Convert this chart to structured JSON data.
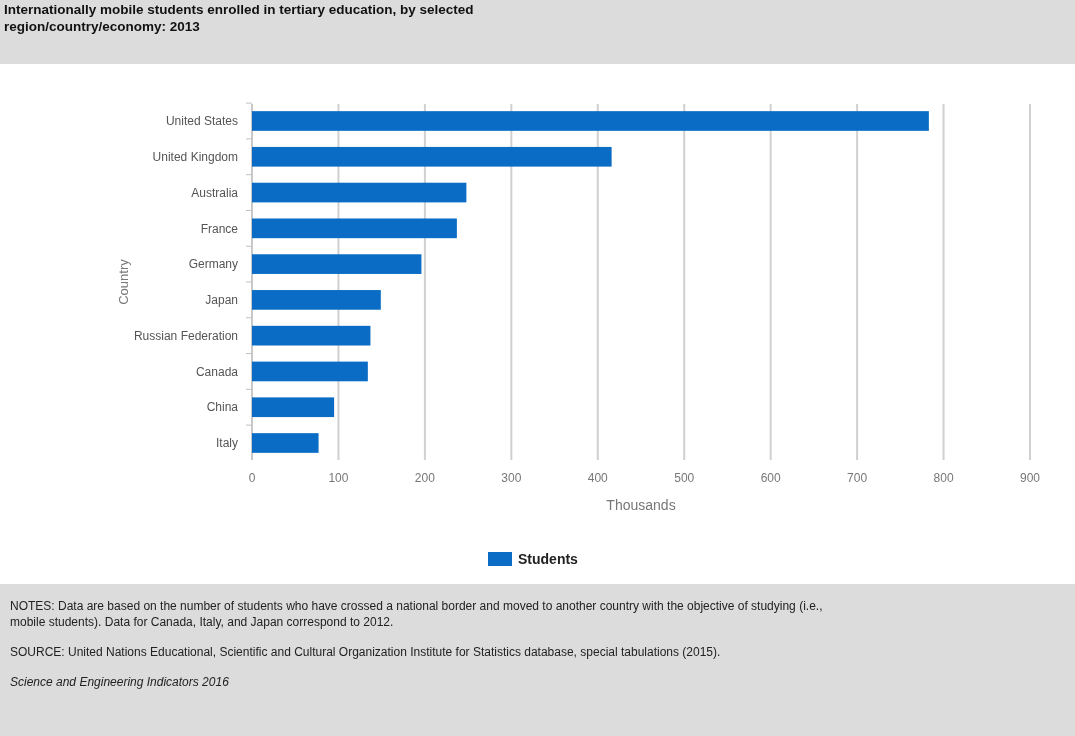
{
  "chart_data": {
    "type": "bar",
    "orientation": "horizontal",
    "title": "Internationally mobile students enrolled in tertiary education, by selected region/country/economy: 2013",
    "categories": [
      "United States",
      "United Kingdom",
      "Australia",
      "France",
      "Germany",
      "Japan",
      "Russian Federation",
      "Canada",
      "China",
      "Italy"
    ],
    "series": [
      {
        "name": "Students",
        "color": "#0a6cc4",
        "values": [
          783,
          416,
          248,
          237,
          196,
          149,
          137,
          134,
          95,
          77
        ]
      }
    ],
    "xlim": [
      0,
      900
    ],
    "xticks": [
      0,
      100,
      200,
      300,
      400,
      500,
      600,
      700,
      800,
      900
    ],
    "xlabel": "Thousands",
    "ylabel": "Country",
    "grid": "x",
    "legend": "bottom",
    "annotations": [
      "NOTES: Data are based on the number of students who have crossed a national border and moved to another country with the objective of studying (i.e., mobile students). Data for Canada, Italy, and Japan correspond to 2012.",
      "SOURCE: United Nations Educational, Scientific and Cultural Organization Institute for Statistics database, special tabulations (2015).",
      "Science and Engineering Indicators 2016"
    ]
  }
}
